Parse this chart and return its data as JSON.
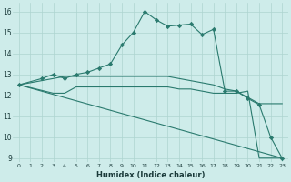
{
  "xlabel": "Humidex (Indice chaleur)",
  "bg_color": "#ceecea",
  "grid_color": "#aed4d0",
  "line_color": "#2a7a6e",
  "xlim": [
    -0.5,
    23.5
  ],
  "ylim": [
    8.8,
    16.4
  ],
  "yticks": [
    9,
    10,
    11,
    12,
    13,
    14,
    15,
    16
  ],
  "xticks": [
    0,
    1,
    2,
    3,
    4,
    5,
    6,
    7,
    8,
    9,
    10,
    11,
    12,
    13,
    14,
    15,
    16,
    17,
    18,
    19,
    20,
    21,
    22,
    23
  ],
  "series": [
    {
      "name": "diagonal_low",
      "x": [
        0,
        23
      ],
      "y": [
        12.5,
        9.0
      ],
      "marker": false
    },
    {
      "name": "flat_mid",
      "x": [
        0,
        3,
        4,
        5,
        6,
        7,
        8,
        9,
        10,
        11,
        12,
        13,
        14,
        15,
        16,
        17,
        18,
        19,
        20,
        21,
        22,
        23
      ],
      "y": [
        12.5,
        12.1,
        12.1,
        12.4,
        12.4,
        12.4,
        12.4,
        12.4,
        12.4,
        12.4,
        12.4,
        12.4,
        12.3,
        12.3,
        12.2,
        12.1,
        12.1,
        12.1,
        12.2,
        9.0,
        9.0,
        9.0
      ],
      "marker": false
    },
    {
      "name": "flat_upper",
      "x": [
        0,
        2,
        3,
        4,
        5,
        6,
        7,
        8,
        9,
        10,
        11,
        12,
        13,
        14,
        15,
        16,
        17,
        18,
        19,
        20,
        21,
        22,
        23
      ],
      "y": [
        12.5,
        12.7,
        12.8,
        12.9,
        12.9,
        12.9,
        12.9,
        12.9,
        12.9,
        12.9,
        12.9,
        12.9,
        12.9,
        12.8,
        12.7,
        12.6,
        12.5,
        12.3,
        12.2,
        11.9,
        11.6,
        11.6,
        11.6
      ],
      "marker": false
    },
    {
      "name": "main_curve",
      "x": [
        0,
        2,
        3,
        4,
        5,
        6,
        7,
        8,
        9,
        10,
        11,
        12,
        13,
        14,
        15,
        16,
        17,
        18,
        19,
        20,
        21,
        22,
        23
      ],
      "y": [
        12.5,
        12.8,
        13.0,
        12.8,
        13.0,
        13.1,
        13.3,
        13.5,
        14.4,
        15.0,
        16.0,
        15.6,
        15.3,
        15.35,
        15.4,
        14.9,
        15.15,
        12.2,
        12.2,
        11.85,
        11.55,
        10.0,
        9.0
      ],
      "marker": true
    }
  ]
}
